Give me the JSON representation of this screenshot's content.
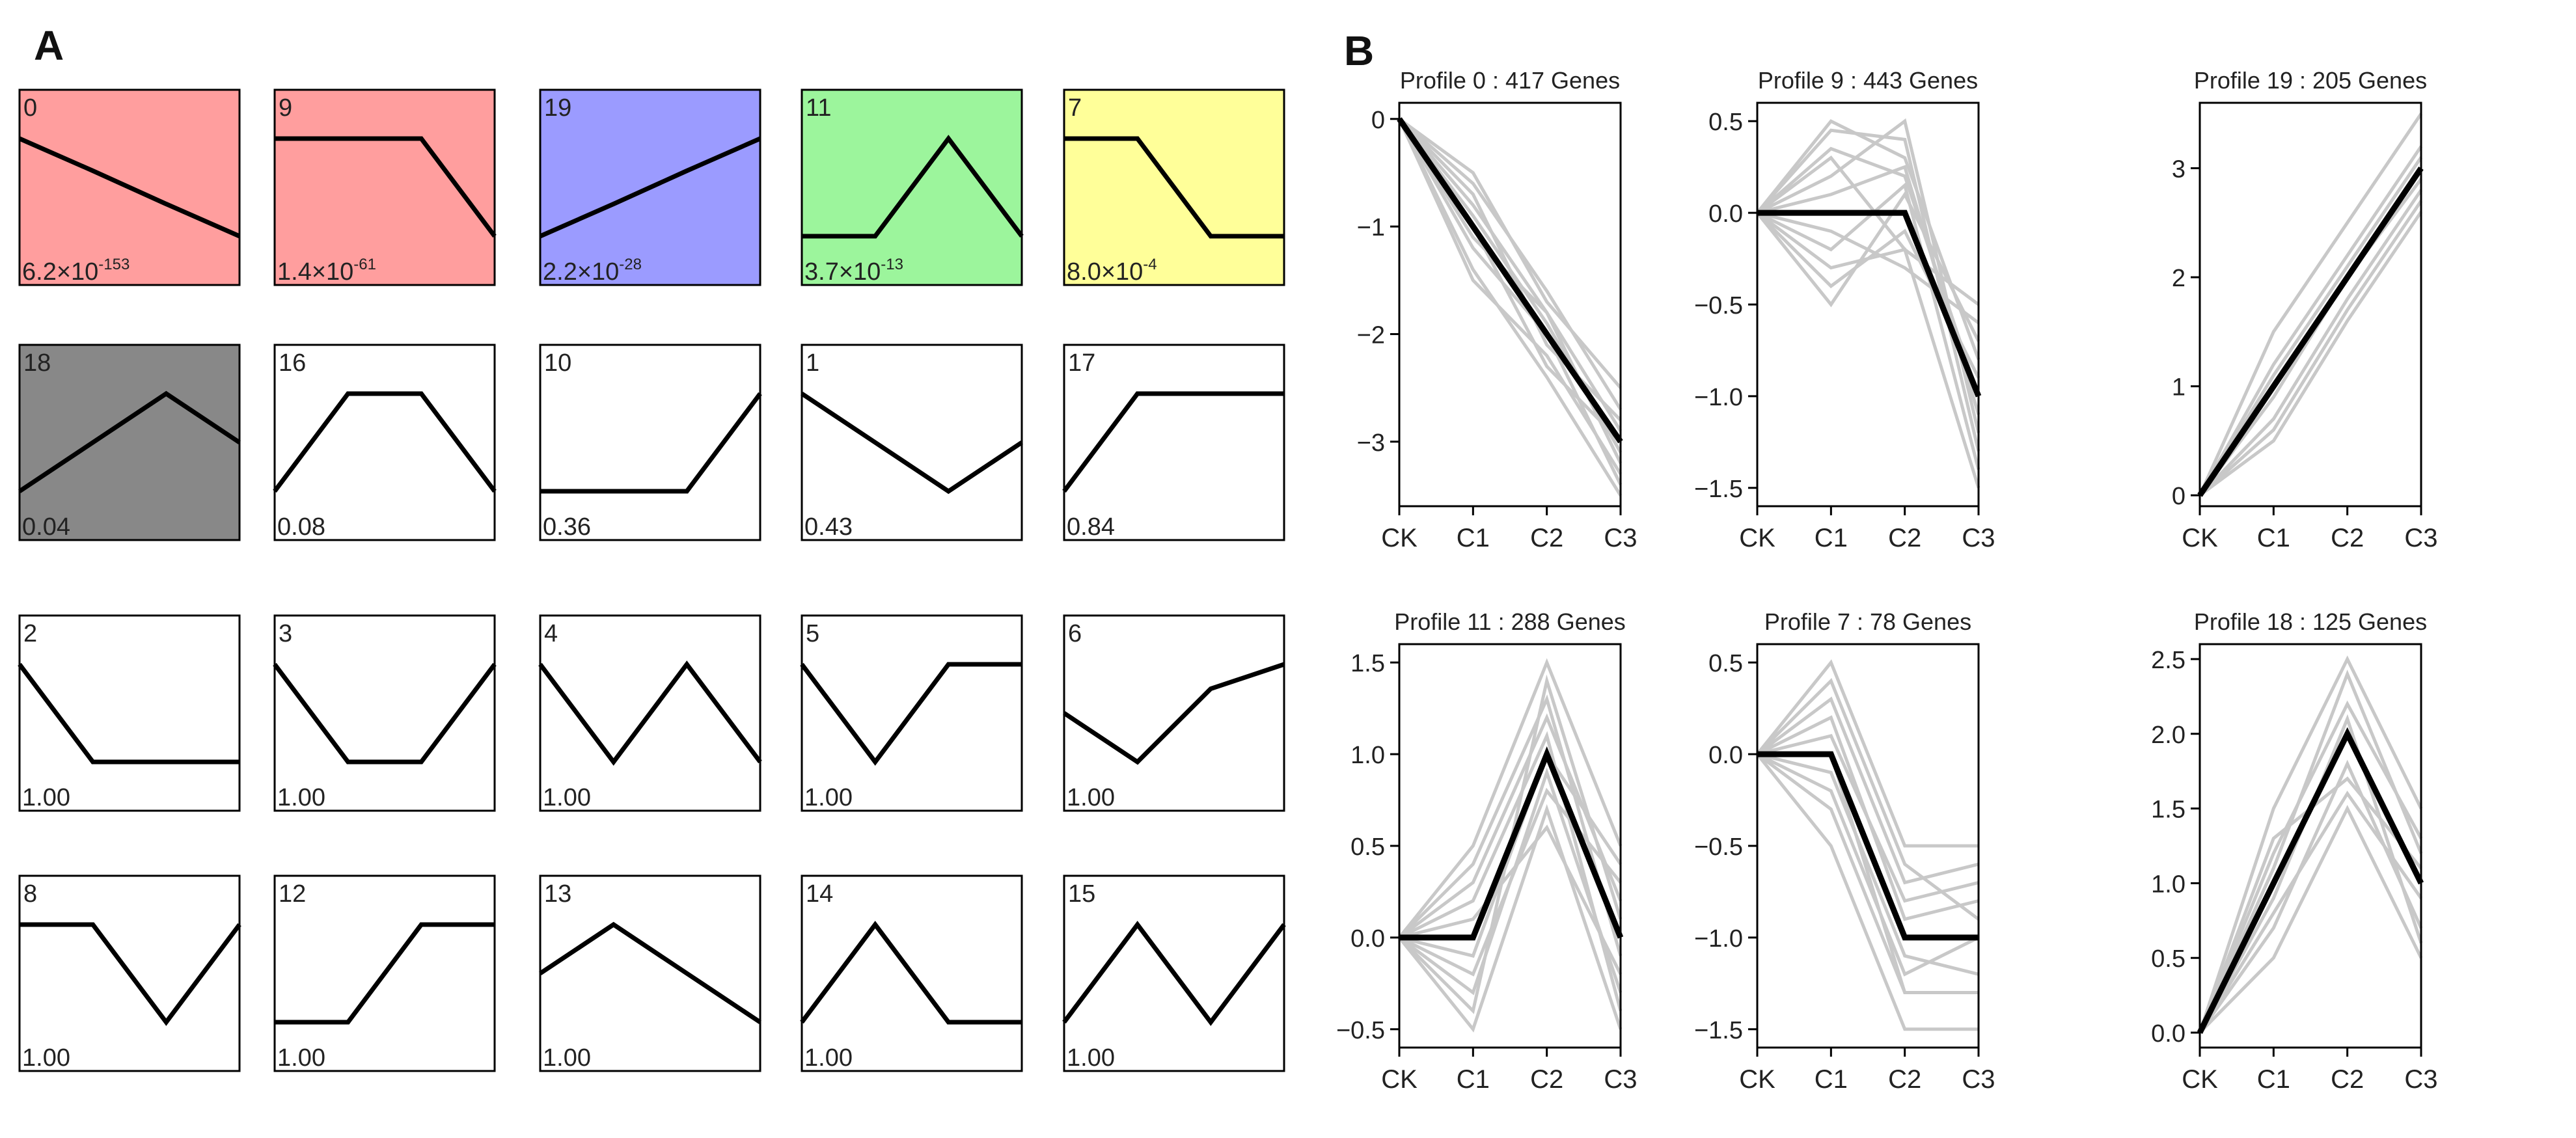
{
  "panel_a": {
    "label": "A",
    "profiles": [
      {
        "id": "0",
        "pval": "6.2×10",
        "exp": "-153",
        "color": "#ff9e9e",
        "shape": [
          0.5,
          0.17,
          -0.17,
          -0.5
        ]
      },
      {
        "id": "9",
        "pval": "1.4×10",
        "exp": "-61",
        "color": "#ff9e9e",
        "shape": [
          0.5,
          0.5,
          0.5,
          -0.5
        ]
      },
      {
        "id": "19",
        "pval": "2.2×10",
        "exp": "-28",
        "color": "#9b9bff",
        "shape": [
          -0.5,
          -0.17,
          0.17,
          0.5
        ]
      },
      {
        "id": "11",
        "pval": "3.7×10",
        "exp": "-13",
        "color": "#9cf59c",
        "shape": [
          -0.5,
          -0.5,
          0.5,
          -0.5
        ]
      },
      {
        "id": "7",
        "pval": "8.0×10",
        "exp": "-4",
        "color": "#ffff99",
        "shape": [
          0.5,
          0.5,
          -0.5,
          -0.5
        ]
      },
      {
        "id": "18",
        "pval": "0.04",
        "exp": "",
        "color": "#888888",
        "shape": [
          -0.5,
          0,
          0.5,
          0
        ]
      },
      {
        "id": "16",
        "pval": "0.08",
        "exp": "",
        "color": "#ffffff",
        "shape": [
          -0.5,
          0.5,
          0.5,
          -0.5
        ]
      },
      {
        "id": "10",
        "pval": "0.36",
        "exp": "",
        "color": "#ffffff",
        "shape": [
          -0.5,
          -0.5,
          -0.5,
          0.5
        ]
      },
      {
        "id": "1",
        "pval": "0.43",
        "exp": "",
        "color": "#ffffff",
        "shape": [
          0.5,
          0,
          -0.5,
          0
        ]
      },
      {
        "id": "17",
        "pval": "0.84",
        "exp": "",
        "color": "#ffffff",
        "shape": [
          -0.5,
          0.5,
          0.5,
          0.5
        ]
      },
      {
        "id": "2",
        "pval": "1.00",
        "exp": "",
        "color": "#ffffff",
        "shape": [
          0.5,
          -0.5,
          -0.5,
          -0.5
        ]
      },
      {
        "id": "3",
        "pval": "1.00",
        "exp": "",
        "color": "#ffffff",
        "shape": [
          0.5,
          -0.5,
          -0.5,
          0.5
        ]
      },
      {
        "id": "4",
        "pval": "1.00",
        "exp": "",
        "color": "#ffffff",
        "shape": [
          0.5,
          -0.5,
          0.5,
          -0.5
        ]
      },
      {
        "id": "5",
        "pval": "1.00",
        "exp": "",
        "color": "#ffffff",
        "shape": [
          0.5,
          -0.5,
          0.5,
          0.5
        ]
      },
      {
        "id": "6",
        "pval": "1.00",
        "exp": "",
        "color": "#ffffff",
        "shape": [
          0,
          -0.5,
          0.25,
          0.5
        ]
      },
      {
        "id": "8",
        "pval": "1.00",
        "exp": "",
        "color": "#ffffff",
        "shape": [
          0.5,
          0.5,
          -0.5,
          0.5
        ]
      },
      {
        "id": "12",
        "pval": "1.00",
        "exp": "",
        "color": "#ffffff",
        "shape": [
          -0.5,
          -0.5,
          0.5,
          0.5
        ]
      },
      {
        "id": "13",
        "pval": "1.00",
        "exp": "",
        "color": "#ffffff",
        "shape": [
          0,
          0.5,
          0,
          -0.5
        ]
      },
      {
        "id": "14",
        "pval": "1.00",
        "exp": "",
        "color": "#ffffff",
        "shape": [
          -0.5,
          0.5,
          -0.5,
          -0.5
        ]
      },
      {
        "id": "15",
        "pval": "1.00",
        "exp": "",
        "color": "#ffffff",
        "shape": [
          -0.5,
          0.5,
          -0.5,
          0.5
        ]
      }
    ]
  },
  "panel_b": {
    "label": "B"
  },
  "chart_data": [
    {
      "type": "line",
      "title": "Profile 0 : 417 Genes",
      "categories": [
        "CK",
        "C1",
        "C2",
        "C3"
      ],
      "model": [
        0,
        -1,
        -2,
        -3
      ],
      "ylim": [
        -3.6,
        0.15
      ],
      "yticks": [
        0,
        -1,
        -2,
        -3
      ],
      "ytick_labels": [
        "0",
        "−1",
        "−2",
        "−3"
      ],
      "genes": [
        [
          0,
          -0.9,
          -1.9,
          -3.1
        ],
        [
          0,
          -0.8,
          -1.8,
          -2.9
        ],
        [
          0,
          -1.5,
          -2.2,
          -3.3
        ],
        [
          0,
          -0.6,
          -1.6,
          -2.7
        ],
        [
          0,
          -1.2,
          -2.0,
          -3.4
        ],
        [
          0,
          -0.5,
          -1.7,
          -2.5
        ],
        [
          0,
          -1.4,
          -2.4,
          -3.5
        ],
        [
          0,
          -0.7,
          -2.1,
          -2.8
        ],
        [
          0,
          -1.1,
          -1.8,
          -3.2
        ],
        [
          0,
          -1.0,
          -2.3,
          -3.0
        ]
      ]
    },
    {
      "type": "line",
      "title": "Profile 9 : 443 Genes",
      "categories": [
        "CK",
        "C1",
        "C2",
        "C3"
      ],
      "model": [
        0,
        0,
        0,
        -1
      ],
      "ylim": [
        -1.6,
        0.6
      ],
      "yticks": [
        0.5,
        0,
        -0.5,
        -1.0,
        -1.5
      ],
      "ytick_labels": [
        "0.5",
        "0.0",
        "−0.5",
        "−1.0",
        "−1.5"
      ],
      "genes": [
        [
          0,
          0.5,
          0.3,
          -0.8
        ],
        [
          0,
          0.2,
          0.5,
          -1.2
        ],
        [
          0,
          -0.3,
          -0.2,
          -1.5
        ],
        [
          0,
          -0.5,
          0.1,
          -0.7
        ],
        [
          0,
          0.35,
          0.2,
          -1.0
        ],
        [
          0,
          -0.1,
          -0.3,
          -0.6
        ],
        [
          0,
          0.45,
          0.4,
          -1.3
        ],
        [
          0,
          -0.4,
          -0.1,
          -0.9
        ],
        [
          0,
          0.1,
          0.25,
          -1.1
        ],
        [
          0,
          0.3,
          -0.2,
          -0.5
        ],
        [
          0,
          -0.2,
          0.15,
          -1.4
        ]
      ]
    },
    {
      "type": "line",
      "title": "Profile 19 : 205 Genes",
      "categories": [
        "CK",
        "C1",
        "C2",
        "C3"
      ],
      "model": [
        0,
        1,
        2,
        3
      ],
      "ylim": [
        -0.1,
        3.6
      ],
      "yticks": [
        0,
        1,
        2,
        3
      ],
      "ytick_labels": [
        "0",
        "1",
        "2",
        "3"
      ],
      "genes": [
        [
          0,
          1.5,
          2.5,
          3.5
        ],
        [
          0,
          0.5,
          1.6,
          2.6
        ],
        [
          0,
          0.7,
          1.8,
          2.8
        ],
        [
          0,
          1.2,
          2.2,
          3.2
        ],
        [
          0,
          0.9,
          2.0,
          2.9
        ],
        [
          0,
          1.1,
          2.1,
          3.1
        ],
        [
          0,
          0.6,
          1.7,
          2.7
        ]
      ]
    },
    {
      "type": "line",
      "title": "Profile 11 : 288 Genes",
      "categories": [
        "CK",
        "C1",
        "C2",
        "C3"
      ],
      "model": [
        0,
        0,
        1,
        0
      ],
      "ylim": [
        -0.6,
        1.6
      ],
      "yticks": [
        1.5,
        1.0,
        0.5,
        0,
        -0.5
      ],
      "ytick_labels": [
        "1.5",
        "1.0",
        "0.5",
        "0.0",
        "−0.5"
      ],
      "genes": [
        [
          0,
          0.5,
          1.5,
          0.5
        ],
        [
          0,
          -0.5,
          0.7,
          -0.5
        ],
        [
          0,
          0.3,
          1.2,
          0.2
        ],
        [
          0,
          -0.3,
          0.9,
          -0.3
        ],
        [
          0,
          0.4,
          1.3,
          -0.1
        ],
        [
          0,
          -0.2,
          0.8,
          0.3
        ],
        [
          0,
          0.2,
          1.1,
          -0.4
        ],
        [
          0,
          -0.4,
          1.4,
          0.1
        ],
        [
          0,
          0.1,
          0.6,
          -0.2
        ],
        [
          0,
          -0.1,
          1.0,
          0.4
        ]
      ]
    },
    {
      "type": "line",
      "title": "Profile 7 : 78 Genes",
      "categories": [
        "CK",
        "C1",
        "C2",
        "C3"
      ],
      "model": [
        0,
        0,
        -1,
        -1
      ],
      "ylim": [
        -1.6,
        0.6
      ],
      "yticks": [
        0.5,
        0,
        -0.5,
        -1.0,
        -1.5
      ],
      "ytick_labels": [
        "0.5",
        "0.0",
        "−0.5",
        "−1.0",
        "−1.5"
      ],
      "genes": [
        [
          0,
          0.5,
          -0.5,
          -0.5
        ],
        [
          0,
          -0.5,
          -1.5,
          -1.5
        ],
        [
          0,
          0.3,
          -0.7,
          -0.6
        ],
        [
          0,
          -0.3,
          -1.3,
          -1.3
        ],
        [
          0,
          0.2,
          -0.9,
          -0.8
        ],
        [
          0,
          -0.2,
          -1.2,
          -1.0
        ],
        [
          0,
          0.1,
          -0.8,
          -0.7
        ],
        [
          0,
          -0.1,
          -1.1,
          -1.2
        ],
        [
          0,
          0.4,
          -0.6,
          -0.9
        ],
        [
          0,
          0.0,
          -1.3,
          -1.3
        ]
      ]
    },
    {
      "type": "line",
      "title": "Profile 18 : 125 Genes",
      "categories": [
        "CK",
        "C1",
        "C2",
        "C3"
      ],
      "model": [
        0,
        1,
        2,
        1
      ],
      "ylim": [
        -0.1,
        2.6
      ],
      "yticks": [
        0,
        0.5,
        1.0,
        1.5,
        2.0,
        2.5
      ],
      "ytick_labels": [
        "0.0",
        "0.5",
        "1.0",
        "1.5",
        "2.0",
        "2.5"
      ],
      "genes": [
        [
          0,
          1.5,
          2.5,
          1.5
        ],
        [
          0,
          0.5,
          1.5,
          0.5
        ],
        [
          0,
          1.2,
          2.2,
          1.3
        ],
        [
          0,
          0.7,
          1.8,
          0.7
        ],
        [
          0,
          1.1,
          2.4,
          1.2
        ],
        [
          0,
          0.8,
          1.6,
          0.9
        ],
        [
          0,
          0.9,
          2.1,
          0.6
        ],
        [
          0,
          1.3,
          1.7,
          1.1
        ]
      ]
    }
  ]
}
